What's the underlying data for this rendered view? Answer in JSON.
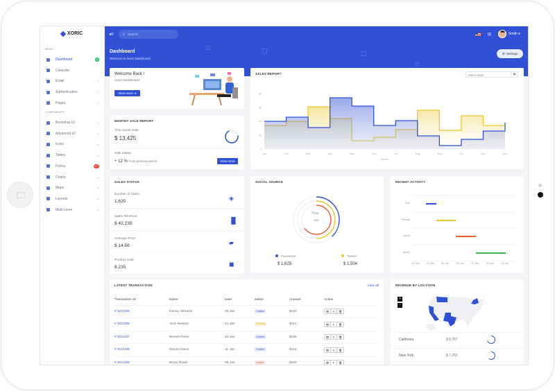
{
  "app": {
    "logo": "XORIC"
  },
  "sidebar": {
    "menu_label": "MENU",
    "components_label": "COMPONENTS",
    "items": [
      {
        "label": "Dashboard",
        "badge": "9",
        "badge_color": "#22c55e",
        "active": true,
        "chevron": false
      },
      {
        "label": "Calendar",
        "chevron": false
      },
      {
        "label": "Email",
        "chevron": true
      },
      {
        "label": "Authentication",
        "chevron": true
      },
      {
        "label": "Pages",
        "chevron": true
      }
    ],
    "component_items": [
      {
        "label": "Bootstrap UI",
        "chevron": true
      },
      {
        "label": "Advanced UI",
        "chevron": true
      },
      {
        "label": "Icons",
        "chevron": true
      },
      {
        "label": "Tables",
        "chevron": true
      },
      {
        "label": "Forms",
        "badge": "07",
        "badge_color": "#ef4d2f",
        "chevron": false
      },
      {
        "label": "Charts",
        "chevron": true
      },
      {
        "label": "Maps",
        "chevron": true
      },
      {
        "label": "Layouts",
        "chevron": true
      },
      {
        "label": "Multi Level",
        "chevron": true
      }
    ]
  },
  "header": {
    "search_placeholder": "Search...",
    "user": "Smith",
    "page_title": "Dashboard",
    "page_subtitle": "Welcome to Xoric Dashboard",
    "settings": "Settings",
    "accent": "#3050d6"
  },
  "welcome": {
    "title": "Welcome Back !",
    "subtitle": "Xoric Dashboard",
    "button": "View more"
  },
  "monthly": {
    "title": "MONTHY SALE REPORT",
    "this_month_label": "This month Sale",
    "this_month_value": "$ 13,425",
    "status_label": "Sale status",
    "change": "+ 12 %",
    "change_note": "From previous period",
    "button": "View more"
  },
  "sales_report": {
    "title": "SALES REPORT",
    "date_placeholder": "Select Date"
  },
  "chart_data": {
    "type": "line",
    "title": "SALES REPORT",
    "xlabel": "Month",
    "ylabel": "",
    "categories": [
      "Jan",
      "Feb",
      "Mar",
      "Apr",
      "May",
      "Jun",
      "Jul",
      "Aug",
      "Sep",
      "Oct",
      "Nov",
      "Dec"
    ],
    "ylim": [
      0,
      80
    ],
    "yticks": [
      0,
      20,
      40,
      60,
      80
    ],
    "step": true,
    "series": [
      {
        "values": [
          40,
          46,
          31,
          74,
          62,
          34,
          41,
          19,
          5,
          14,
          26,
          38
        ],
        "color": "#2f50d6"
      },
      {
        "values": [
          34,
          40,
          61,
          44,
          12,
          17,
          28,
          56,
          27,
          48,
          34,
          34
        ],
        "color": "#e8c62a"
      }
    ]
  },
  "sales_status": {
    "title": "SALES STATUS",
    "items": [
      {
        "label": "Number of Sales",
        "value": "1,625",
        "icon": "layers-icon"
      },
      {
        "label": "Sales Revenue",
        "value": "$ 42,235",
        "icon": "bar-chart-icon"
      },
      {
        "label": "Average Price",
        "value": "$ 14.56",
        "icon": "ticket-icon"
      },
      {
        "label": "Product Sold",
        "value": "8,235",
        "icon": "box-icon"
      }
    ]
  },
  "social": {
    "title": "SOCIAL SOURCE",
    "center_label": "Total",
    "center_value": "166",
    "rings": [
      {
        "fraction": 0.38,
        "color": "#2f50d6"
      },
      {
        "fraction": 0.5,
        "color": "#e8c62a"
      },
      {
        "fraction": 0.65,
        "color": "#ef5a2f"
      }
    ],
    "legend": [
      {
        "label": "Facebook",
        "value": "$ 1,625",
        "color": "#2f50d6"
      },
      {
        "label": "Twitter",
        "value": "$ 1,504",
        "color": "#e8c62a"
      }
    ]
  },
  "activity": {
    "title": "RECENT ACTIVITY",
    "ticks": [
      "31 Dec",
      "03 Jan",
      "06 Jan",
      "09 Jan",
      "12 Jan",
      "15 Jan",
      "18 Jan"
    ],
    "rows": [
      {
        "name": "Jack",
        "start": "02 Jan",
        "end": "04 Jan",
        "color": "#2f50d6"
      },
      {
        "name": "Thomas",
        "start": "04 Jan",
        "end": "08 Jan",
        "color": "#e8c62a"
      },
      {
        "name": "David",
        "start": "08 Jan",
        "end": "12 Jan",
        "color": "#ef5a2f"
      },
      {
        "name": "James",
        "start": "12 Jan",
        "end": "18 Jan",
        "color": "#3bb54a"
      }
    ]
  },
  "transactions": {
    "title": "LATEST TRANSACTION",
    "view_all": "View all",
    "columns": [
      "Transaction ID",
      "Name",
      "Date",
      "status",
      "Amount",
      "Action"
    ],
    "rows": [
      {
        "id": "# XO1345",
        "name": "Danny Johnson",
        "date": "26 Jan",
        "status": "Confirm",
        "amount": "$124"
      },
      {
        "id": "# XO1346",
        "name": "Alvin Newton",
        "date": "21 Jan",
        "status": "Pending",
        "amount": "$112"
      },
      {
        "id": "# XO1347",
        "name": "Bennie Perez",
        "date": "15 Jan",
        "status": "Confirm",
        "amount": "$106"
      },
      {
        "id": "# XO1348",
        "name": "Steven Kwon",
        "date": "11 Jan",
        "status": "Confirm",
        "amount": "$115"
      },
      {
        "id": "# XO1349",
        "name": "Bryan Roark",
        "date": "08 Jan",
        "status": "Cancel",
        "amount": "$105"
      }
    ],
    "status_colors": {
      "Confirm": [
        "#e3e8fb",
        "#2f50d6"
      ],
      "Pending": [
        "#fdf6d6",
        "#d3a800"
      ],
      "Cancel": [
        "#fde6e1",
        "#e2472a"
      ]
    }
  },
  "location": {
    "title": "REVENUE BY LOCATION",
    "zoom_in": "+",
    "zoom_out": "-",
    "rows": [
      {
        "state": "California",
        "value": "$ 8,257",
        "fraction": 0.7
      },
      {
        "state": "New York",
        "value": "$ 7,253",
        "fraction": 0.6
      }
    ]
  }
}
